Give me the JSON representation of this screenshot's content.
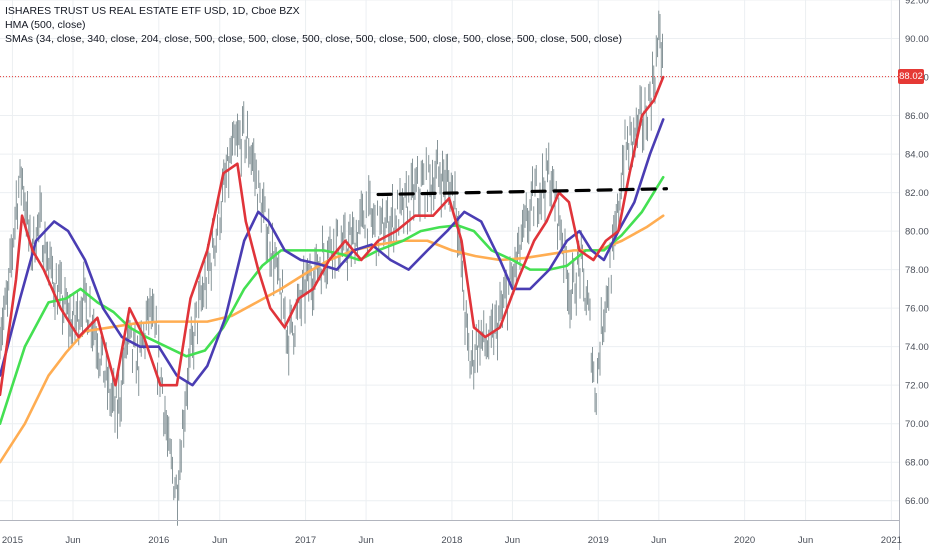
{
  "legend": {
    "title": "ISHARES TRUST US REAL ESTATE ETF USD, 1D, Cboe BZX",
    "hma": "HMA (500, close)",
    "smas": "SMAs (34, close, 340, close, 204, close, 500, close, 500, close, 500, close, 500, close, 500, close, 500, close, 500, close, 500, close)"
  },
  "last_price": {
    "label": "88.02",
    "value": 88.02,
    "color": "#e53935"
  },
  "colors": {
    "candle": "#7a8a8e",
    "hma": "#e0343a",
    "sma34": "#4a3db3",
    "sma204": "#44e052",
    "sma340": "#ffad52",
    "resistance": "#000000",
    "grid": "#eceff2",
    "axis_text": "#4a4f59"
  },
  "chart_data": {
    "type": "line",
    "title": "ISHARES TRUST US REAL ESTATE ETF USD, 1D, Cboe BZX",
    "ylim": [
      65,
      92
    ],
    "xlim": [
      "2014-12-01",
      "2021-01-20"
    ],
    "y_ticks": [
      "66.00",
      "68.00",
      "70.00",
      "72.00",
      "74.00",
      "76.00",
      "78.00",
      "80.00",
      "82.00",
      "84.00",
      "86.00",
      "88.00",
      "90.00",
      "92.00"
    ],
    "x_ticks": [
      {
        "label": "2015",
        "date": "2015-01-01"
      },
      {
        "label": "Jun",
        "date": "2015-06-01"
      },
      {
        "label": "2016",
        "date": "2016-01-01"
      },
      {
        "label": "Jun",
        "date": "2016-06-01"
      },
      {
        "label": "2017",
        "date": "2017-01-01"
      },
      {
        "label": "Jun",
        "date": "2017-06-01"
      },
      {
        "label": "2018",
        "date": "2018-01-01"
      },
      {
        "label": "Jun",
        "date": "2018-06-01"
      },
      {
        "label": "2019",
        "date": "2019-01-01"
      },
      {
        "label": "Jun",
        "date": "2019-06-01"
      },
      {
        "label": "2020",
        "date": "2020-01-01"
      },
      {
        "label": "Jun",
        "date": "2020-06-01"
      },
      {
        "label": "2021",
        "date": "2021-01-01"
      }
    ],
    "price_series": {
      "name": "ISHARES TRUST US REAL ESTATE ETF USD",
      "x": [
        "2014-12-01",
        "2014-12-20",
        "2015-01-10",
        "2015-01-25",
        "2015-02-15",
        "2015-03-10",
        "2015-04-05",
        "2015-05-01",
        "2015-06-01",
        "2015-06-25",
        "2015-07-20",
        "2015-08-15",
        "2015-09-01",
        "2015-09-20",
        "2015-10-15",
        "2015-11-10",
        "2015-12-10",
        "2016-01-10",
        "2016-01-25",
        "2016-02-15",
        "2016-03-10",
        "2016-04-05",
        "2016-05-01",
        "2016-06-01",
        "2016-07-01",
        "2016-08-01",
        "2016-08-20",
        "2016-09-15",
        "2016-10-10",
        "2016-11-01",
        "2016-11-20",
        "2016-12-15",
        "2017-01-10",
        "2017-02-10",
        "2017-03-10",
        "2017-04-05",
        "2017-05-01",
        "2017-06-01",
        "2017-07-01",
        "2017-08-01",
        "2017-09-01",
        "2017-10-01",
        "2017-11-01",
        "2017-12-01",
        "2018-01-10",
        "2018-02-01",
        "2018-02-15",
        "2018-03-10",
        "2018-04-05",
        "2018-05-01",
        "2018-06-01",
        "2018-07-01",
        "2018-08-01",
        "2018-09-01",
        "2018-10-01",
        "2018-10-25",
        "2018-11-15",
        "2018-12-10",
        "2018-12-24",
        "2019-01-15",
        "2019-02-10",
        "2019-03-05",
        "2019-04-01",
        "2019-05-01",
        "2019-05-20",
        "2019-06-05",
        "2019-06-12"
      ],
      "y": [
        75.0,
        76.3,
        81.5,
        83.0,
        79.0,
        80.5,
        78.0,
        76.5,
        75.0,
        76.5,
        75.5,
        73.0,
        71.5,
        70.5,
        74.5,
        73.0,
        76.0,
        72.0,
        68.5,
        66.5,
        72.0,
        75.5,
        77.5,
        81.0,
        84.0,
        85.0,
        84.0,
        81.0,
        79.0,
        76.5,
        74.5,
        76.0,
        77.5,
        78.5,
        79.5,
        79.0,
        79.5,
        81.0,
        80.0,
        80.5,
        81.0,
        82.0,
        82.5,
        83.0,
        82.0,
        76.0,
        73.0,
        74.5,
        74.0,
        75.5,
        77.5,
        80.0,
        82.0,
        83.0,
        80.0,
        76.5,
        78.5,
        75.5,
        71.5,
        76.0,
        79.0,
        84.0,
        85.0,
        86.0,
        88.0,
        90.5,
        88.0
      ]
    },
    "series": [
      {
        "name": "HMA (500, close)",
        "x": [
          "2014-12-01",
          "2015-01-10",
          "2015-01-25",
          "2015-02-20",
          "2015-03-20",
          "2015-05-01",
          "2015-06-15",
          "2015-08-01",
          "2015-09-15",
          "2015-10-20",
          "2015-11-25",
          "2016-01-05",
          "2016-02-15",
          "2016-03-20",
          "2016-05-01",
          "2016-06-10",
          "2016-07-15",
          "2016-08-05",
          "2016-09-05",
          "2016-10-05",
          "2016-11-10",
          "2016-12-15",
          "2017-01-20",
          "2017-03-01",
          "2017-04-10",
          "2017-05-20",
          "2017-07-01",
          "2017-08-15",
          "2017-10-01",
          "2017-11-15",
          "2017-12-25",
          "2018-01-25",
          "2018-02-25",
          "2018-03-25",
          "2018-05-01",
          "2018-06-15",
          "2018-07-25",
          "2018-08-25",
          "2018-09-25",
          "2018-10-20",
          "2018-11-15",
          "2018-12-20",
          "2019-01-20",
          "2019-02-20",
          "2019-03-20",
          "2019-04-20",
          "2019-05-20",
          "2019-06-12"
        ],
        "y": [
          71.5,
          77.5,
          80.8,
          79.0,
          78.0,
          76.0,
          74.5,
          75.5,
          72.0,
          76.0,
          74.5,
          72.0,
          72.0,
          76.5,
          79.0,
          83.0,
          83.5,
          80.5,
          78.0,
          76.0,
          75.0,
          76.5,
          77.0,
          78.5,
          79.5,
          78.5,
          79.5,
          80.0,
          80.8,
          80.8,
          81.7,
          79.5,
          75.0,
          74.5,
          75.0,
          77.5,
          79.5,
          80.5,
          82.0,
          81.5,
          79.0,
          78.5,
          79.5,
          80.0,
          83.0,
          86.0,
          86.8,
          88.0
        ]
      },
      {
        "name": "SMA 34",
        "x": [
          "2014-12-01",
          "2015-01-20",
          "2015-03-01",
          "2015-04-15",
          "2015-05-20",
          "2015-07-01",
          "2015-08-15",
          "2015-10-01",
          "2015-11-15",
          "2016-01-01",
          "2016-02-15",
          "2016-03-25",
          "2016-05-01",
          "2016-06-15",
          "2016-08-01",
          "2016-09-05",
          "2016-10-01",
          "2016-11-10",
          "2016-12-20",
          "2017-02-01",
          "2017-03-20",
          "2017-05-01",
          "2017-06-15",
          "2017-08-01",
          "2017-09-15",
          "2017-11-01",
          "2017-12-20",
          "2018-02-01",
          "2018-03-15",
          "2018-05-01",
          "2018-06-01",
          "2018-07-15",
          "2018-09-01",
          "2018-10-15",
          "2018-11-15",
          "2018-12-15",
          "2019-01-15",
          "2019-02-20",
          "2019-04-01",
          "2019-05-10",
          "2019-06-12"
        ],
        "y": [
          72.5,
          76.5,
          79.5,
          80.5,
          80.0,
          78.5,
          76.0,
          74.5,
          74.0,
          74.0,
          72.5,
          72.0,
          73.0,
          75.5,
          79.5,
          81.0,
          80.5,
          79.0,
          78.5,
          78.3,
          78.0,
          79.0,
          79.3,
          78.5,
          78.0,
          79.0,
          80.0,
          81.0,
          80.5,
          78.5,
          77.0,
          77.0,
          78.0,
          79.5,
          80.0,
          79.0,
          78.5,
          80.0,
          81.5,
          84.0,
          85.8
        ]
      },
      {
        "name": "SMA 204",
        "x": [
          "2014-12-01",
          "2015-02-01",
          "2015-04-01",
          "2015-05-15",
          "2015-06-20",
          "2015-08-01",
          "2015-09-10",
          "2015-10-20",
          "2015-12-01",
          "2016-01-20",
          "2016-03-10",
          "2016-04-25",
          "2016-06-10",
          "2016-08-01",
          "2016-09-15",
          "2016-11-01",
          "2016-12-20",
          "2017-02-15",
          "2017-04-01",
          "2017-05-15",
          "2017-07-01",
          "2017-09-01",
          "2017-10-15",
          "2017-12-01",
          "2018-01-15",
          "2018-02-25",
          "2018-04-10",
          "2018-06-01",
          "2018-07-15",
          "2018-09-01",
          "2018-10-15",
          "2018-12-01",
          "2019-01-15",
          "2019-03-01",
          "2019-04-20",
          "2019-06-12"
        ],
        "y": [
          70.0,
          74.0,
          76.3,
          76.5,
          77.0,
          76.3,
          75.8,
          75.0,
          74.5,
          74.0,
          73.5,
          73.8,
          75.0,
          77.0,
          78.2,
          79.0,
          79.0,
          79.0,
          78.8,
          78.5,
          79.0,
          79.5,
          80.0,
          80.2,
          80.3,
          80.0,
          79.0,
          78.5,
          78.0,
          78.0,
          78.2,
          79.0,
          79.0,
          79.8,
          81.0,
          82.8
        ]
      },
      {
        "name": "SMA 340",
        "x": [
          "2014-12-01",
          "2015-02-01",
          "2015-04-01",
          "2015-05-15",
          "2015-07-01",
          "2015-09-01",
          "2015-11-01",
          "2016-01-01",
          "2016-03-01",
          "2016-05-01",
          "2016-07-01",
          "2016-09-01",
          "2016-11-01",
          "2017-01-01",
          "2017-03-01",
          "2017-05-01",
          "2017-07-01",
          "2017-09-01",
          "2017-11-01",
          "2018-01-01",
          "2018-03-01",
          "2018-05-01",
          "2018-07-01",
          "2018-09-01",
          "2018-11-01",
          "2019-01-01",
          "2019-03-01",
          "2019-05-01",
          "2019-06-12"
        ],
        "y": [
          68.0,
          70.0,
          72.5,
          73.7,
          74.8,
          75.0,
          75.2,
          75.3,
          75.3,
          75.3,
          75.6,
          76.3,
          77.0,
          77.8,
          78.5,
          79.0,
          79.3,
          79.5,
          79.5,
          79.0,
          78.7,
          78.5,
          78.6,
          78.8,
          79.0,
          79.0,
          79.5,
          80.2,
          80.8
        ]
      },
      {
        "name": "Resistance",
        "x": [
          "2017-07-01",
          "2019-06-20"
        ],
        "y": [
          81.9,
          82.2
        ]
      }
    ]
  }
}
